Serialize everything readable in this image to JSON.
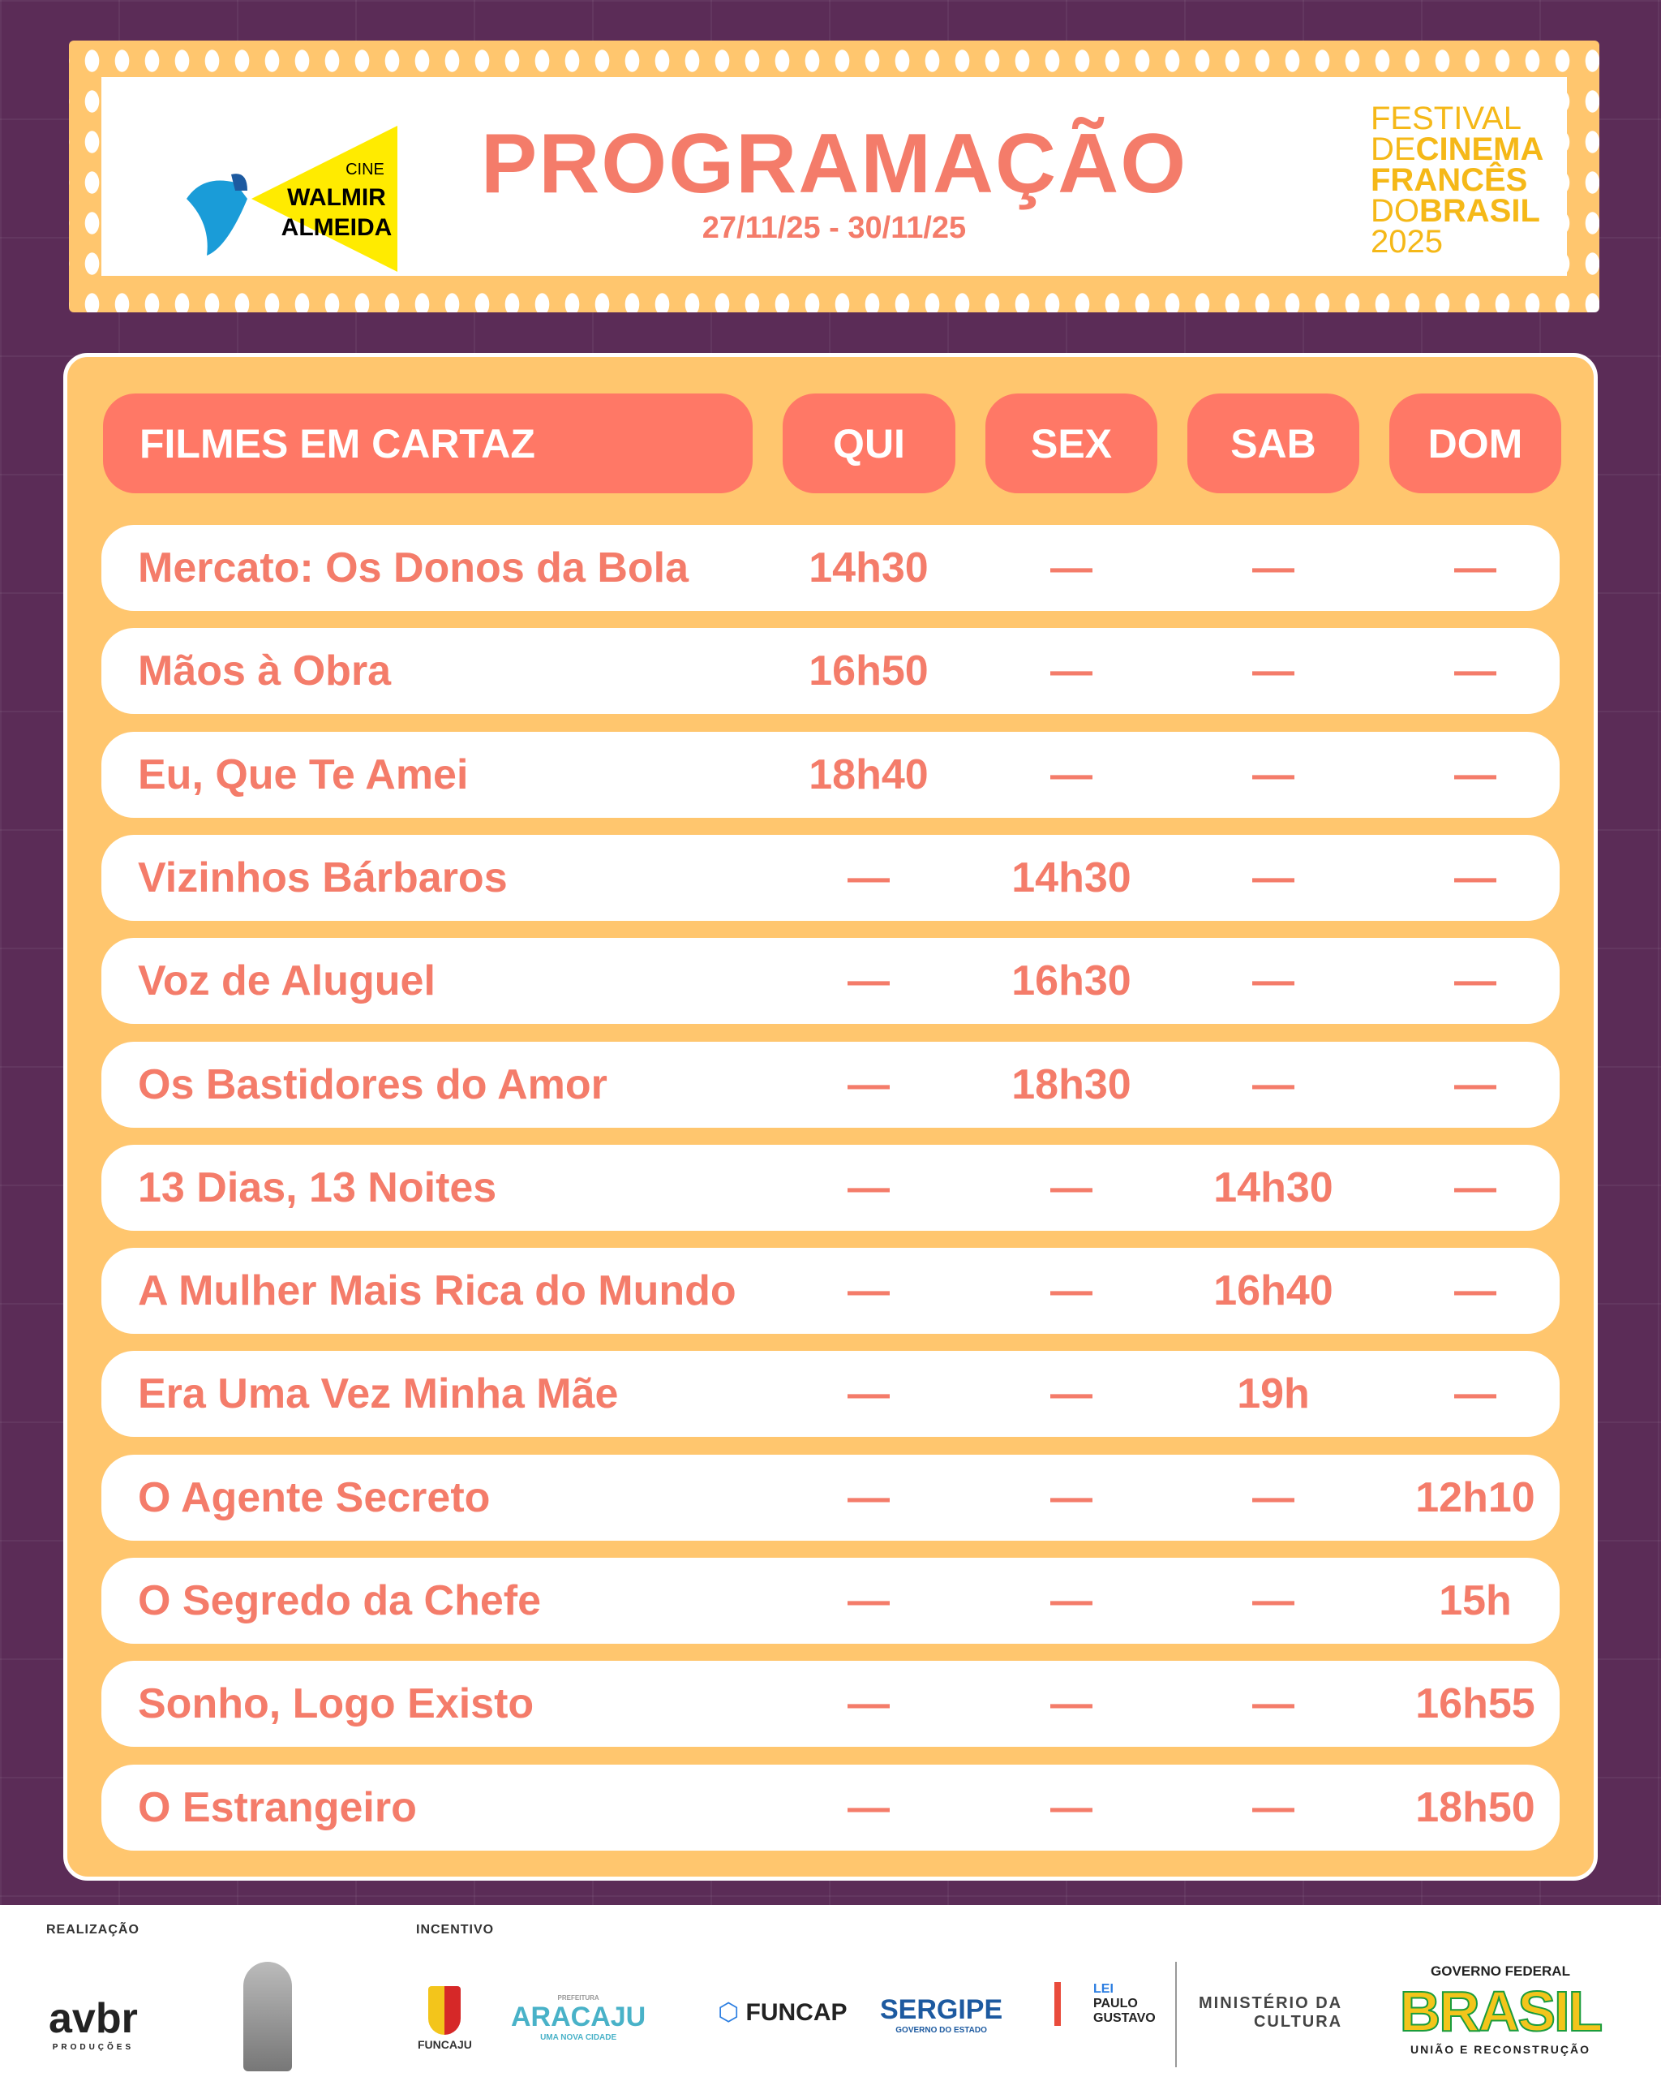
{
  "header": {
    "cinema_logo": {
      "line1": "CINE",
      "line2": "WALMIR",
      "line3": "ALMEIDA"
    },
    "title": "PROGRAMAÇÃO",
    "dates": "27/11/25 - 30/11/25",
    "festival_logo": {
      "line1": "FESTIVAL",
      "line2a": "DE",
      "line2b": "CINEMA",
      "line3": "FRANCÊS",
      "line4a": "DO",
      "line4b": "BRASIL",
      "line5": "2025"
    }
  },
  "table": {
    "columns": [
      "FILMES EM CARTAZ",
      "QUI",
      "SEX",
      "SAB",
      "DOM"
    ],
    "rows": [
      {
        "film": "Mercato: Os Donos da Bola",
        "times": [
          "14h30",
          "—",
          "—",
          "—"
        ]
      },
      {
        "film": "Mãos à Obra",
        "times": [
          "16h50",
          "—",
          "—",
          "—"
        ]
      },
      {
        "film": "Eu, Que Te Amei",
        "times": [
          "18h40",
          "—",
          "—",
          "—"
        ]
      },
      {
        "film": "Vizinhos Bárbaros",
        "times": [
          "—",
          "14h30",
          "—",
          "—"
        ]
      },
      {
        "film": "Voz de Aluguel",
        "times": [
          "—",
          "16h30",
          "—",
          "—"
        ]
      },
      {
        "film": "Os Bastidores do Amor",
        "times": [
          "—",
          "18h30",
          "—",
          "—"
        ]
      },
      {
        "film": "13 Dias, 13 Noites",
        "times": [
          "—",
          "—",
          "14h30",
          "—"
        ]
      },
      {
        "film": "A Mulher Mais Rica do Mundo",
        "times": [
          "—",
          "—",
          "16h40",
          "—"
        ]
      },
      {
        "film": "Era Uma Vez Minha Mãe",
        "times": [
          "—",
          "—",
          "19h",
          "—"
        ]
      },
      {
        "film": "O Agente Secreto",
        "times": [
          "—",
          "—",
          "—",
          "12h10"
        ]
      },
      {
        "film": "O Segredo da Chefe",
        "times": [
          "—",
          "—",
          "—",
          "15h"
        ]
      },
      {
        "film": "Sonho, Logo Existo",
        "times": [
          "—",
          "—",
          "—",
          "16h55"
        ]
      },
      {
        "film": "O Estrangeiro",
        "times": [
          "—",
          "—",
          "—",
          "18h50"
        ]
      }
    ]
  },
  "footer": {
    "realizacao_label": "REALIZAÇÃO",
    "incentivo_label": "INCENTIVO",
    "logos": {
      "avbr": "avbr",
      "avbr_sub": "PRODUÇÕES",
      "funcaju": "FUNCAJU",
      "aracaju": "ARACAJU",
      "aracaju_top": "PREFEITURA",
      "aracaju_sub": "UMA NOVA CIDADE",
      "funcap": "FUNCAP",
      "sergipe": "SERGIPE",
      "sergipe_sub": "GOVERNO DO ESTADO",
      "lpg1": "LEI",
      "lpg2": "PAULO",
      "lpg3": "GUSTAVO",
      "minc1": "MINISTÉRIO DA",
      "minc2": "CULTURA",
      "gov_top": "GOVERNO FEDERAL",
      "gov_main": "BRASIL",
      "gov_sub": "UNIÃO E RECONSTRUÇÃO"
    }
  },
  "colors": {
    "background": "#5b2c57",
    "panel": "#ffc66e",
    "accent": "#ff7866",
    "text": "#f47c6a",
    "festival": "#f5b818"
  }
}
